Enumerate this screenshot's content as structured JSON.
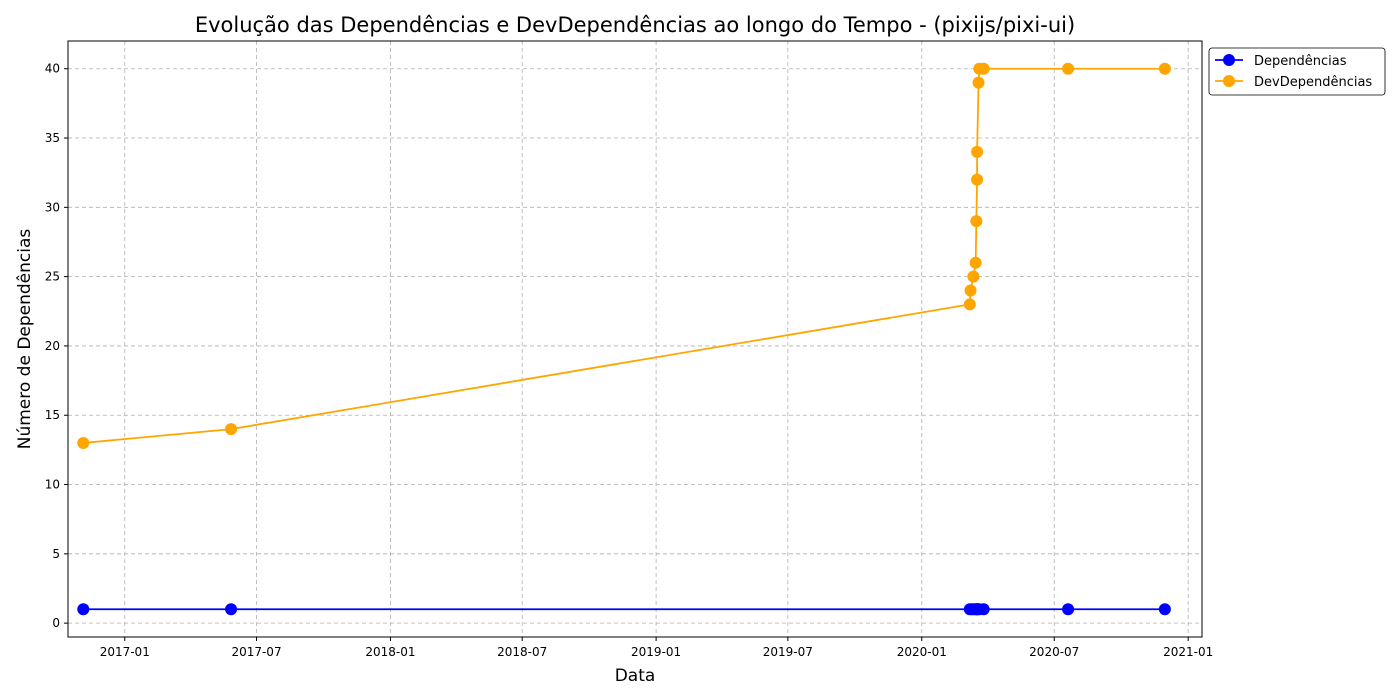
{
  "chart_data": {
    "type": "line",
    "title": "Evolução das Dependências e DevDependências ao longo do Tempo - (pixijs/pixi-ui)",
    "xlabel": "Data",
    "ylabel": "Número de Dependências",
    "x_scale": "date",
    "xlim": [
      "2016-10-15",
      "2021-01-20"
    ],
    "ylim": [
      -1,
      42
    ],
    "x_ticks": [
      {
        "date": "2017-01-01",
        "label": "2017-01"
      },
      {
        "date": "2017-07-01",
        "label": "2017-07"
      },
      {
        "date": "2018-01-01",
        "label": "2018-01"
      },
      {
        "date": "2018-07-01",
        "label": "2018-07"
      },
      {
        "date": "2019-01-01",
        "label": "2019-01"
      },
      {
        "date": "2019-07-01",
        "label": "2019-07"
      },
      {
        "date": "2020-01-01",
        "label": "2020-01"
      },
      {
        "date": "2020-07-01",
        "label": "2020-07"
      },
      {
        "date": "2021-01-01",
        "label": "2021-01"
      }
    ],
    "y_ticks": [
      0,
      5,
      10,
      15,
      20,
      25,
      30,
      35,
      40
    ],
    "grid": true,
    "legend": "top-right, outside plot",
    "series": [
      {
        "name": "Dependências",
        "color": "#0000ff",
        "marker": "circle",
        "points": [
          {
            "x": "2016-11-05",
            "y": 1
          },
          {
            "x": "2017-05-27",
            "y": 1
          },
          {
            "x": "2020-03-07",
            "y": 1
          },
          {
            "x": "2020-03-10",
            "y": 1
          },
          {
            "x": "2020-03-12",
            "y": 1
          },
          {
            "x": "2020-03-15",
            "y": 1
          },
          {
            "x": "2020-03-16",
            "y": 1
          },
          {
            "x": "2020-03-17",
            "y": 1
          },
          {
            "x": "2020-03-18",
            "y": 1
          },
          {
            "x": "2020-03-20",
            "y": 1
          },
          {
            "x": "2020-03-26",
            "y": 1
          },
          {
            "x": "2020-07-20",
            "y": 1
          },
          {
            "x": "2020-11-30",
            "y": 1
          }
        ]
      },
      {
        "name": "DevDependências",
        "color": "#ffa500",
        "marker": "circle",
        "points": [
          {
            "x": "2016-11-05",
            "y": 13
          },
          {
            "x": "2017-05-27",
            "y": 14
          },
          {
            "x": "2020-03-07",
            "y": 23
          },
          {
            "x": "2020-03-08",
            "y": 24
          },
          {
            "x": "2020-03-12",
            "y": 25
          },
          {
            "x": "2020-03-15",
            "y": 26
          },
          {
            "x": "2020-03-16",
            "y": 29
          },
          {
            "x": "2020-03-17",
            "y": 32
          },
          {
            "x": "2020-03-17",
            "y": 34
          },
          {
            "x": "2020-03-19",
            "y": 39
          },
          {
            "x": "2020-03-20",
            "y": 40
          },
          {
            "x": "2020-03-26",
            "y": 40
          },
          {
            "x": "2020-07-20",
            "y": 40
          },
          {
            "x": "2020-11-30",
            "y": 40
          }
        ]
      }
    ]
  }
}
